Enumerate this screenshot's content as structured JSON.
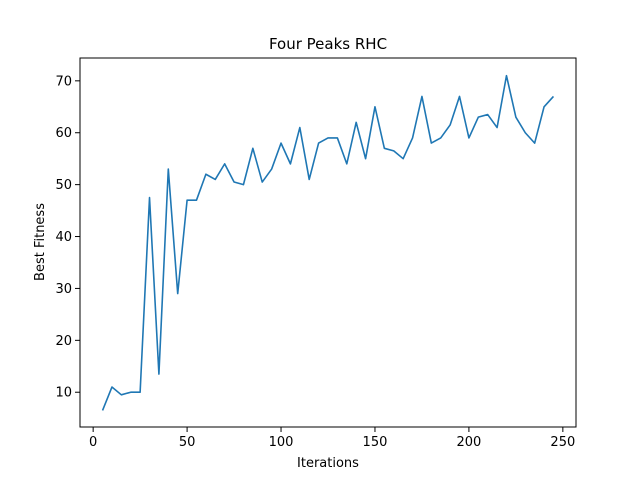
{
  "chart_data": {
    "type": "line",
    "title": "Four Peaks RHC",
    "xlabel": "Iterations",
    "ylabel": "Best Fitness",
    "xlim": [
      -7,
      257
    ],
    "ylim": [
      3.3,
      74.4
    ],
    "xticks": [
      0,
      50,
      100,
      150,
      200,
      250
    ],
    "yticks": [
      10,
      20,
      30,
      40,
      50,
      60,
      70
    ],
    "grid": false,
    "legend": "none",
    "line_color": "#1f77b4",
    "series": [
      {
        "x": [
          5,
          10,
          15,
          20,
          25,
          30,
          35,
          40,
          45,
          50,
          55,
          60,
          65,
          70,
          75,
          80,
          85,
          90,
          95,
          100,
          105,
          110,
          115,
          120,
          125,
          130,
          135,
          140,
          145,
          150,
          155,
          160,
          165,
          170,
          175,
          180,
          185,
          190,
          195,
          200,
          205,
          210,
          215,
          220,
          225,
          230,
          235,
          240,
          245
        ],
        "y": [
          6.5,
          11,
          9.5,
          10,
          10,
          47.5,
          13.5,
          53,
          29,
          47,
          47,
          52,
          51,
          54,
          50.5,
          50,
          57,
          50.5,
          53,
          58,
          54,
          61,
          51,
          58,
          59,
          59,
          54,
          62,
          55,
          65,
          57,
          56.5,
          55,
          59,
          67,
          58,
          59,
          61.5,
          67,
          59,
          63,
          63.5,
          61,
          71,
          63,
          60,
          58,
          65,
          67
        ]
      }
    ]
  }
}
